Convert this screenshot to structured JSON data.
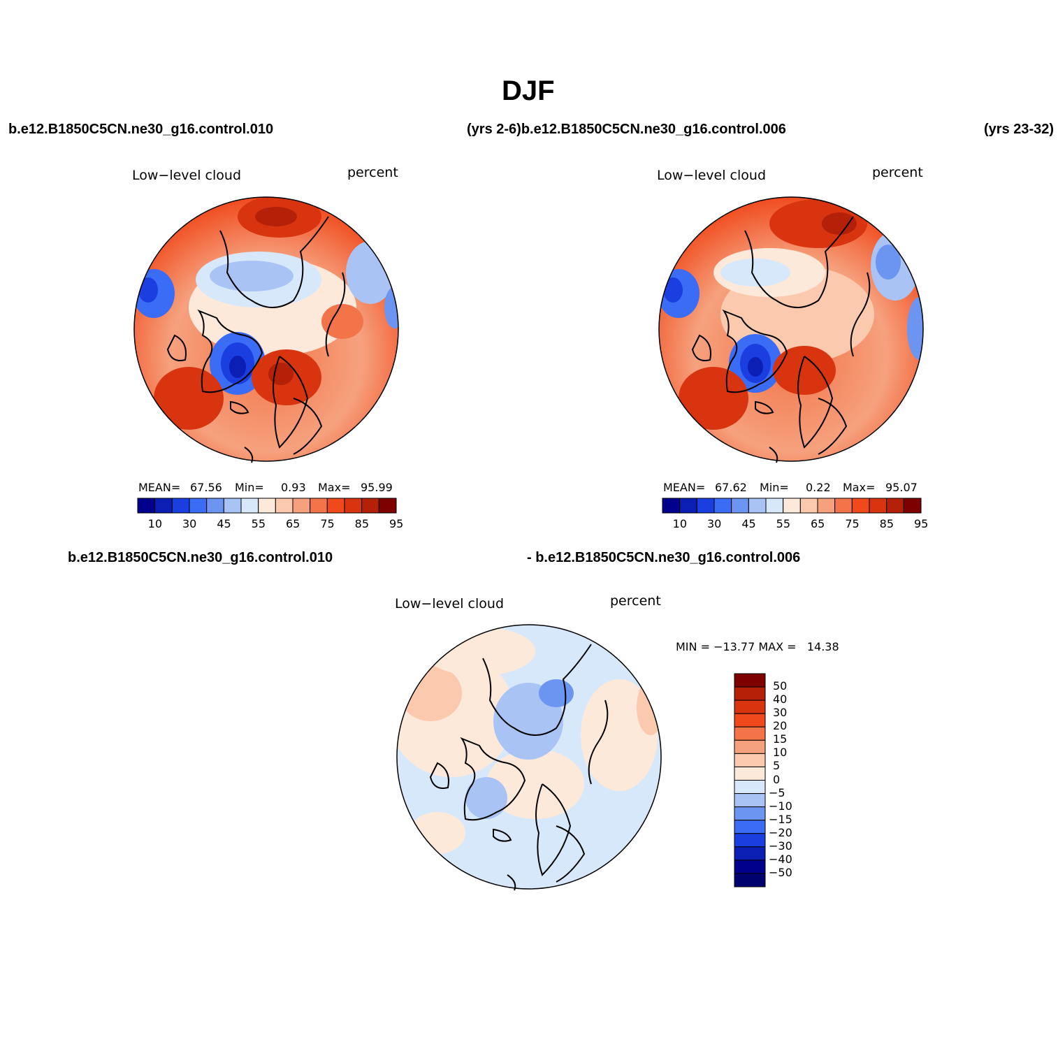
{
  "title": "DJF",
  "top_left_case": "b.e12.B1850C5CN.ne30_g16.control.010",
  "top_mid_case": "(yrs 2-6)b.e12.B1850C5CN.ne30_g16.control.006",
  "top_right_case": "(yrs 23-32)",
  "bottom_left_case": "b.e12.B1850C5CN.ne30_g16.control.010",
  "bottom_mid_case": "- b.e12.B1850C5CN.ne30_g16.control.006",
  "panels": [
    {
      "variable": "Low−level cloud",
      "units": "percent",
      "mean_label": "MEAN=",
      "mean": "67.56",
      "min_label": "Min=",
      "min": "0.93",
      "max_label": "Max=",
      "max": "95.99",
      "colorbar_ticks": [
        "10",
        "30",
        "45",
        "55",
        "65",
        "75",
        "85",
        "95"
      ]
    },
    {
      "variable": "Low−level cloud",
      "units": "percent",
      "mean_label": "MEAN=",
      "mean": "67.62",
      "min_label": "Min=",
      "min": "0.22",
      "max_label": "Max=",
      "max": "95.07",
      "colorbar_ticks": [
        "10",
        "30",
        "45",
        "55",
        "65",
        "75",
        "85",
        "95"
      ]
    },
    {
      "variable": "Low−level cloud",
      "units": "percent",
      "min_max_text": "MIN = −13.77 MAX =   14.38",
      "colorbar_ticks": [
        "50",
        "40",
        "30",
        "20",
        "15",
        "10",
        "5",
        "0",
        "−5",
        "−10",
        "−15",
        "−20",
        "−30",
        "−40",
        "−50"
      ]
    }
  ],
  "colors": {
    "abs_scale": [
      "#00008c",
      "#0c1fb5",
      "#1a3ee0",
      "#3b6cf5",
      "#6b95f0",
      "#a9c3f5",
      "#d8e8fb",
      "#fde9da",
      "#fbc9ae",
      "#f6a17e",
      "#f27448",
      "#f04a1c",
      "#d83410",
      "#b52008",
      "#7e0000"
    ],
    "diff_scale": [
      "#7e0000",
      "#b52008",
      "#d83410",
      "#f04a1c",
      "#f27448",
      "#f6a17e",
      "#fbc9ae",
      "#fde9da",
      "#d8e8fb",
      "#a9c3f5",
      "#6b95f0",
      "#3b6cf5",
      "#1a3ee0",
      "#0c1fb5",
      "#00008c",
      "#00006e"
    ]
  }
}
